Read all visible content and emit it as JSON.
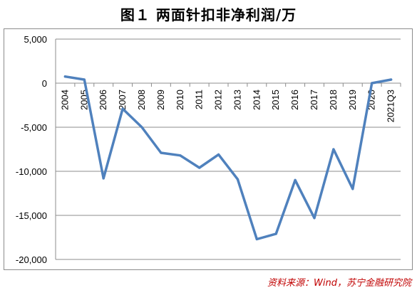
{
  "page_title": "图１ 两面针扣非净利润/万",
  "source": "资料来源：Wind，苏宁金融研究院",
  "chart_data": {
    "type": "line",
    "title": "图１ 两面针扣非净利润/万",
    "xlabel": "",
    "ylabel": "",
    "categories": [
      "2004",
      "2005",
      "2006",
      "2007",
      "2008",
      "2009",
      "2010",
      "2011",
      "2012",
      "2013",
      "2014",
      "2015",
      "2016",
      "2017",
      "2018",
      "2019",
      "2020",
      "2021Q3"
    ],
    "series": [
      {
        "values": [
          750,
          400,
          -10800,
          -2900,
          -5000,
          -7900,
          -8200,
          -9600,
          -8100,
          -10900,
          -17700,
          -17100,
          -11000,
          -15300,
          -7500,
          -12000,
          0,
          400
        ]
      }
    ],
    "ylim": [
      -20000,
      5000
    ],
    "yticks": [
      5000,
      0,
      -5000,
      -10000,
      -15000,
      -20000
    ],
    "ytick_labels": [
      "5,000",
      "0",
      "-5,000",
      "-10,000",
      "-15,000",
      "-20,000"
    ],
    "grid": true,
    "legend": "none",
    "line_color": "#4f81bd",
    "grid_color": "#8c8c8c"
  }
}
